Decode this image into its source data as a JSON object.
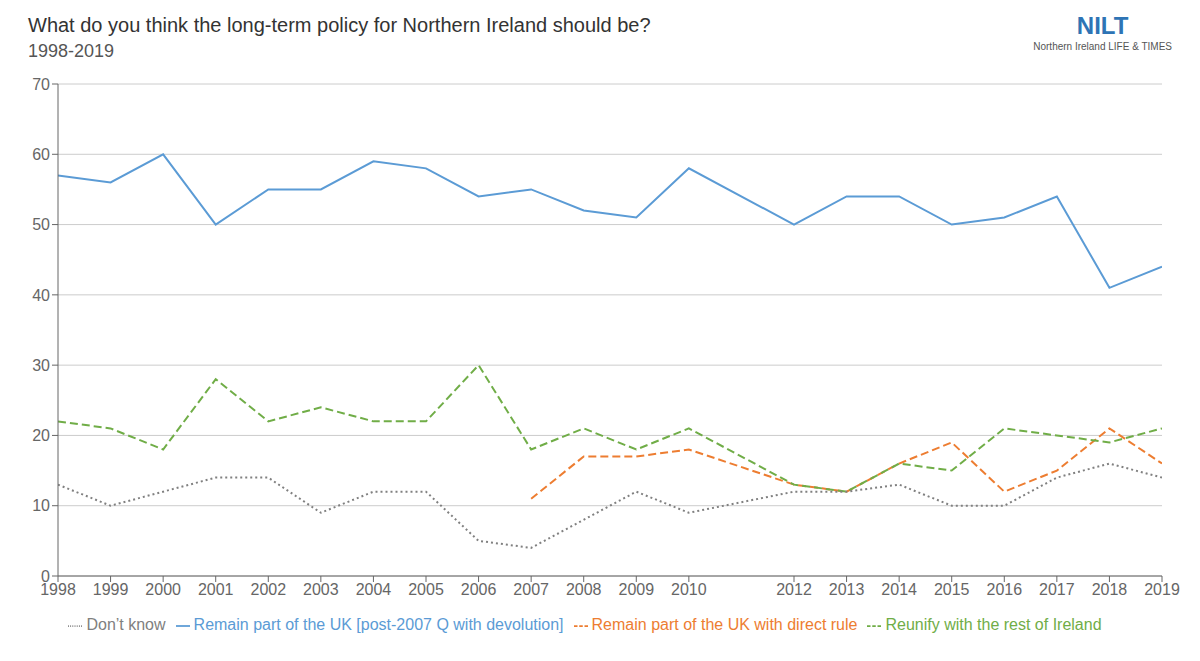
{
  "chart_data": {
    "type": "line",
    "title": "What do you think the long-term policy for Northern Ireland should be?",
    "subtitle": "1998-2019",
    "annotations": [
      {
        "text": "NILT",
        "color": "#2e74b5"
      },
      {
        "text": "Northern Ireland LIFE & TIMES"
      }
    ],
    "x": [
      1998,
      1999,
      2000,
      2001,
      2002,
      2003,
      2004,
      2005,
      2006,
      2007,
      2008,
      2009,
      2010,
      2012,
      2013,
      2014,
      2015,
      2016,
      2017,
      2018,
      2019
    ],
    "xlim": [
      1998,
      2019
    ],
    "xticks": [
      1998,
      1999,
      2000,
      2001,
      2002,
      2003,
      2004,
      2005,
      2006,
      2007,
      2008,
      2009,
      2010,
      2012,
      2013,
      2014,
      2015,
      2016,
      2017,
      2018,
      2019
    ],
    "ylim": [
      0,
      70
    ],
    "yticks": [
      0,
      10,
      20,
      30,
      40,
      50,
      60,
      70
    ],
    "grid": true,
    "legend": "bottom",
    "series": [
      {
        "name": "Remain part of the UK [post-2007 Q with devolution]",
        "color": "#5b9bd5",
        "line_style": "solid",
        "values": [
          57,
          56,
          60,
          50,
          55,
          55,
          59,
          58,
          54,
          55,
          52,
          51,
          58,
          50,
          54,
          54,
          50,
          51,
          54,
          41,
          44
        ]
      },
      {
        "name": "Remain part of the UK with direct rule",
        "color": "#ed7d31",
        "line_style": "dashed",
        "values": [
          null,
          null,
          null,
          null,
          null,
          null,
          null,
          null,
          null,
          11,
          17,
          17,
          18,
          13,
          12,
          16,
          19,
          12,
          15,
          21,
          16
        ]
      },
      {
        "name": "Reunify with the rest of Ireland",
        "color": "#70ad47",
        "line_style": "dashed",
        "values": [
          22,
          21,
          18,
          28,
          22,
          24,
          22,
          22,
          30,
          18,
          21,
          18,
          21,
          13,
          12,
          16,
          15,
          21,
          20,
          19,
          21
        ]
      },
      {
        "name": "Don’t know",
        "color": "#808080",
        "line_style": "dotted",
        "values": [
          13,
          10,
          null,
          14,
          14,
          9,
          12,
          12,
          5,
          4,
          null,
          12,
          9,
          12,
          12,
          13,
          10,
          10,
          14,
          16,
          14
        ]
      }
    ]
  }
}
